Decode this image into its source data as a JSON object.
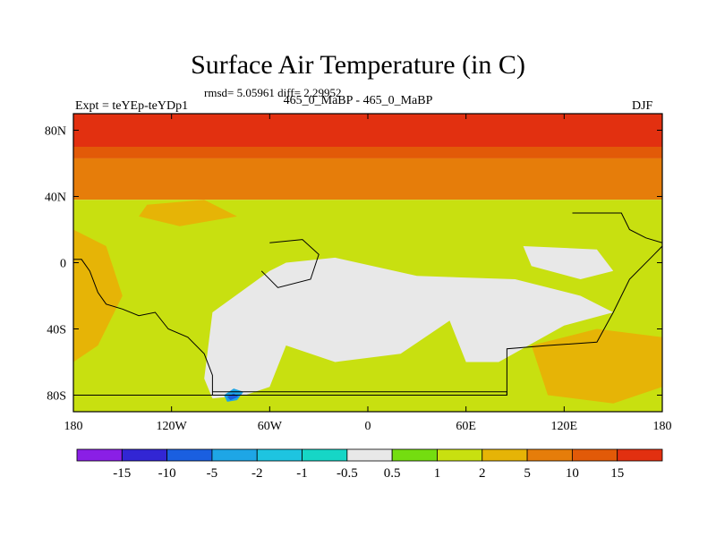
{
  "title": "Surface Air Temperature (in C)",
  "stats_line": "rmsd= 5.05961 diff= 2.29952",
  "experiment_label": "Expt = teYEp-teYDp1",
  "period_label": "465_0_MaBP - 465_0_MaBP",
  "season_label": "DJF",
  "chart_data": {
    "type": "heatmap",
    "title": "Surface Air Temperature (in C)",
    "xlim": [
      -180,
      180
    ],
    "ylim": [
      -90,
      90
    ],
    "x_ticks": [
      -180,
      -120,
      -60,
      0,
      60,
      120,
      180
    ],
    "x_tick_labels": [
      "180",
      "120W",
      "60W",
      "0",
      "60E",
      "120E",
      "180"
    ],
    "y_ticks": [
      -80,
      -40,
      0,
      40,
      80
    ],
    "y_tick_labels": [
      "80S",
      "40S",
      "0",
      "40N",
      "80N"
    ],
    "colorbar": {
      "levels": [
        -15,
        -10,
        -5,
        -2,
        -1,
        -0.5,
        0.5,
        1,
        2,
        5,
        10,
        15
      ],
      "labels": [
        "-15",
        "-10",
        "-5",
        "-2",
        "-1",
        "-0.5",
        "0.5",
        "1",
        "2",
        "5",
        "10",
        "15"
      ],
      "colors": [
        "#8a1fe6",
        "#3226d4",
        "#1a5fe0",
        "#1ea6e6",
        "#1ec4e0",
        "#16d6c6",
        "#e8e8e8",
        "#74dd10",
        "#c8e010",
        "#e6b406",
        "#e67d0a",
        "#e25a08",
        "#e23010"
      ]
    },
    "latitude_bands": [
      {
        "lat_min": 70,
        "lat_max": 90,
        "value_class": 12
      },
      {
        "lat_min": 63,
        "lat_max": 70,
        "value_class": 11
      },
      {
        "lat_min": 38,
        "lat_max": 63,
        "value_class": 10
      },
      {
        "lat_min": -90,
        "lat_max": 38,
        "value_class": 8
      }
    ],
    "regions": [
      {
        "name": "south-polar-white",
        "value_class": 6,
        "lon_lat": [
          [
            -100,
            -70
          ],
          [
            -95,
            -30
          ],
          [
            -60,
            -5
          ],
          [
            -50,
            0
          ],
          [
            -20,
            3
          ],
          [
            30,
            -8
          ],
          [
            90,
            -10
          ],
          [
            130,
            -20
          ],
          [
            150,
            -30
          ],
          [
            120,
            -38
          ],
          [
            80,
            -60
          ],
          [
            60,
            -60
          ],
          [
            50,
            -35
          ],
          [
            20,
            -55
          ],
          [
            -20,
            -60
          ],
          [
            -50,
            -50
          ],
          [
            -60,
            -75
          ],
          [
            -75,
            -80
          ],
          [
            -95,
            -82
          ]
        ]
      },
      {
        "name": "north-white-patch",
        "value_class": 6,
        "lon_lat": [
          [
            95,
            10
          ],
          [
            140,
            8
          ],
          [
            150,
            -5
          ],
          [
            130,
            -10
          ],
          [
            100,
            -2
          ]
        ]
      },
      {
        "name": "cyan-spot",
        "value_class": 3,
        "lon_lat": [
          [
            -88,
            -80
          ],
          [
            -82,
            -76
          ],
          [
            -76,
            -78
          ],
          [
            -80,
            -83
          ],
          [
            -86,
            -84
          ]
        ]
      },
      {
        "name": "blue-spot",
        "value_class": 2,
        "lon_lat": [
          [
            -86,
            -81
          ],
          [
            -82,
            -79
          ],
          [
            -79,
            -81
          ],
          [
            -84,
            -83
          ]
        ]
      },
      {
        "name": "yellow-east",
        "value_class": 9,
        "lon_lat": [
          [
            100,
            -50
          ],
          [
            140,
            -40
          ],
          [
            180,
            -45
          ],
          [
            180,
            -75
          ],
          [
            150,
            -85
          ],
          [
            110,
            -80
          ]
        ]
      },
      {
        "name": "yellow-north-patch",
        "value_class": 9,
        "lon_lat": [
          [
            -135,
            35
          ],
          [
            -100,
            38
          ],
          [
            -80,
            28
          ],
          [
            -115,
            22
          ],
          [
            -140,
            28
          ]
        ]
      },
      {
        "name": "yellow-west-coast",
        "value_class": 9,
        "lon_lat": [
          [
            -180,
            20
          ],
          [
            -160,
            10
          ],
          [
            -150,
            -20
          ],
          [
            -165,
            -50
          ],
          [
            -180,
            -60
          ]
        ]
      }
    ],
    "land_outlines": [
      {
        "name": "west-continent",
        "lon_lat": [
          [
            -180,
            2
          ],
          [
            -175,
            2
          ],
          [
            -170,
            -5
          ],
          [
            -165,
            -18
          ],
          [
            -160,
            -25
          ],
          [
            -150,
            -28
          ],
          [
            -140,
            -32
          ],
          [
            -130,
            -30
          ],
          [
            -122,
            -40
          ],
          [
            -110,
            -45
          ],
          [
            -100,
            -55
          ],
          [
            -95,
            -68
          ],
          [
            -95,
            -80
          ],
          [
            -180,
            -80
          ]
        ]
      },
      {
        "name": "central-block",
        "lon_lat": [
          [
            -60,
            12
          ],
          [
            -40,
            14
          ],
          [
            -30,
            5
          ],
          [
            -35,
            -10
          ],
          [
            -55,
            -15
          ],
          [
            -65,
            -5
          ]
        ]
      },
      {
        "name": "south-strip",
        "lon_lat": [
          [
            -95,
            -80
          ],
          [
            85,
            -80
          ],
          [
            85,
            -78
          ],
          [
            -95,
            -78
          ]
        ]
      },
      {
        "name": "east-continent",
        "lon_lat": [
          [
            85,
            -80
          ],
          [
            85,
            -52
          ],
          [
            110,
            -50
          ],
          [
            140,
            -48
          ],
          [
            150,
            -30
          ],
          [
            160,
            -10
          ],
          [
            175,
            5
          ],
          [
            180,
            10
          ],
          [
            180,
            -80
          ]
        ]
      },
      {
        "name": "north-east-outline",
        "lon_lat": [
          [
            125,
            30
          ],
          [
            155,
            30
          ],
          [
            160,
            20
          ],
          [
            170,
            15
          ],
          [
            180,
            12
          ]
        ]
      }
    ]
  }
}
